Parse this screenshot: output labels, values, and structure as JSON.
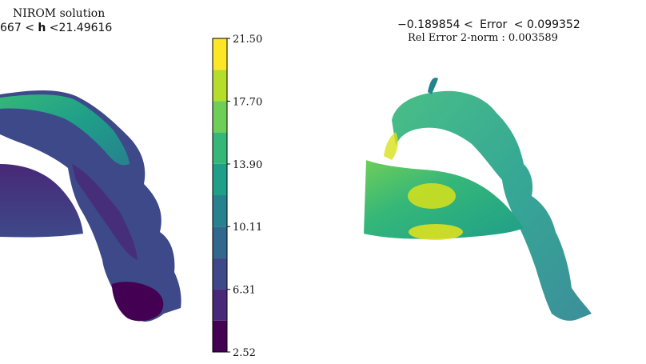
{
  "chart_data": [
    {
      "type": "heatmap",
      "title_line1": "NIROM solution",
      "title_line2_min": "667",
      "title_line2_var": "h",
      "title_line2_max": "21.49616",
      "colorbar": {
        "colormap": "viridis",
        "range": [
          2.52,
          21.5
        ],
        "bands": 10,
        "ticks": [
          2.52,
          6.31,
          10.11,
          13.9,
          17.7,
          21.5
        ],
        "tick_labels": [
          "2.52",
          "6.31",
          "10.11",
          "13.90",
          "17.70",
          "21.50"
        ]
      }
    },
    {
      "type": "heatmap",
      "title_line1_min": "−0.189854",
      "title_line1_label": "Error",
      "title_line1_max": "0.099352",
      "title_line2": "Rel Error 2-norm : 0.003589",
      "colormap": "viridis"
    }
  ],
  "symbols": {
    "lt": "<"
  },
  "colors": {
    "viridis": [
      "#440154",
      "#482878",
      "#3e4989",
      "#31688e",
      "#26828e",
      "#1f9e89",
      "#35b779",
      "#6ece58",
      "#b5de2b",
      "#fde725"
    ]
  }
}
